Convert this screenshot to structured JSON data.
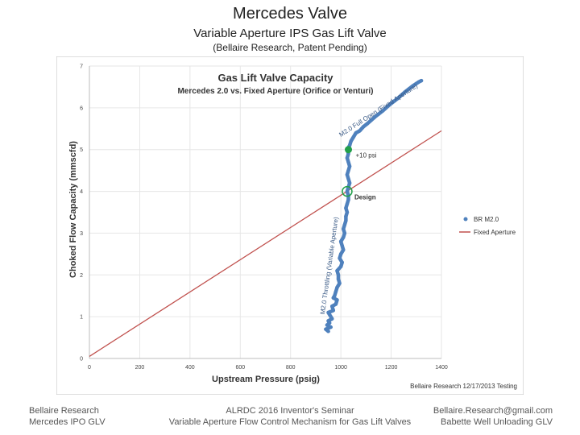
{
  "slide": {
    "title": "Mercedes Valve",
    "subtitle": "Variable Aperture IPS Gas Lift Valve",
    "subnote": "(Bellaire Research, Patent Pending)",
    "footer_left": [
      "Bellaire Research",
      "Mercedes IPO GLV"
    ],
    "footer_center": [
      "ALRDC 2016 Inventor's Seminar",
      "Variable Aperture Flow Control Mechanism for Gas Lift Valves"
    ],
    "footer_right": [
      "Bellaire.Research@gmail.com",
      "Babette Well Unloading GLV"
    ]
  },
  "chart_data": {
    "type": "line",
    "title": "Gas Lift Valve Capacity",
    "subtitle": "Mercedes 2.0 vs. Fixed Aperture (Orifice or Venturi)",
    "xlabel": "Upstream Pressure (psig)",
    "ylabel": "Choked Flow Capacity (mmscfd)",
    "xlim": [
      0,
      1400
    ],
    "ylim": [
      0,
      7
    ],
    "xticks": [
      0,
      200,
      400,
      600,
      800,
      1000,
      1200,
      1400
    ],
    "yticks": [
      0,
      1,
      2,
      3,
      4,
      5,
      6,
      7
    ],
    "grid": true,
    "legend_position": "right",
    "series": [
      {
        "name": "BR M2.0",
        "color": "#4f81bd",
        "points": [
          [
            950,
            0.65
          ],
          [
            940,
            0.7
          ],
          [
            960,
            0.75
          ],
          [
            945,
            0.8
          ],
          [
            955,
            0.85
          ],
          [
            950,
            0.9
          ],
          [
            965,
            0.95
          ],
          [
            960,
            1.0
          ],
          [
            950,
            1.1
          ],
          [
            970,
            1.15
          ],
          [
            965,
            1.25
          ],
          [
            980,
            1.3
          ],
          [
            985,
            1.4
          ],
          [
            970,
            1.45
          ],
          [
            975,
            1.5
          ],
          [
            980,
            1.6
          ],
          [
            985,
            1.7
          ],
          [
            995,
            1.8
          ],
          [
            990,
            1.9
          ],
          [
            990,
            2.0
          ],
          [
            985,
            2.1
          ],
          [
            1000,
            2.2
          ],
          [
            1005,
            2.3
          ],
          [
            995,
            2.4
          ],
          [
            1000,
            2.5
          ],
          [
            1010,
            2.6
          ],
          [
            1005,
            2.7
          ],
          [
            1000,
            2.8
          ],
          [
            1010,
            2.9
          ],
          [
            1015,
            3.0
          ],
          [
            1010,
            3.1
          ],
          [
            1015,
            3.2
          ],
          [
            1020,
            3.3
          ],
          [
            1020,
            3.4
          ],
          [
            1025,
            3.5
          ],
          [
            1020,
            3.6
          ],
          [
            1025,
            3.7
          ],
          [
            1030,
            3.8
          ],
          [
            1030,
            3.9
          ],
          [
            1025,
            4.0
          ],
          [
            1030,
            4.1
          ],
          [
            1035,
            4.2
          ],
          [
            1030,
            4.3
          ],
          [
            1025,
            4.4
          ],
          [
            1030,
            4.5
          ],
          [
            1035,
            4.6
          ],
          [
            1030,
            4.7
          ],
          [
            1025,
            4.8
          ],
          [
            1030,
            4.9
          ],
          [
            1025,
            5.0
          ],
          [
            1035,
            5.1
          ],
          [
            1040,
            5.2
          ],
          [
            1050,
            5.3
          ],
          [
            1060,
            5.4
          ],
          [
            1075,
            5.45
          ],
          [
            1090,
            5.55
          ],
          [
            1105,
            5.62
          ],
          [
            1120,
            5.7
          ],
          [
            1135,
            5.78
          ],
          [
            1150,
            5.85
          ],
          [
            1165,
            5.92
          ],
          [
            1180,
            6.0
          ],
          [
            1195,
            6.08
          ],
          [
            1210,
            6.15
          ],
          [
            1225,
            6.22
          ],
          [
            1240,
            6.3
          ],
          [
            1255,
            6.38
          ],
          [
            1270,
            6.45
          ],
          [
            1285,
            6.52
          ],
          [
            1300,
            6.58
          ],
          [
            1310,
            6.62
          ],
          [
            1320,
            6.65
          ]
        ]
      },
      {
        "name": "Fixed Aperture",
        "color": "#c0504d",
        "points": [
          [
            0,
            0.05
          ],
          [
            1400,
            5.45
          ]
        ]
      }
    ],
    "markers": [
      {
        "label": "+10 psi",
        "x": 1030,
        "y": 5.0,
        "style": "filled",
        "color": "#22a04a"
      },
      {
        "label": "Design",
        "x": 1025,
        "y": 4.0,
        "style": "hollow",
        "color": "#22a04a"
      }
    ],
    "annotations": [
      {
        "text": "M2.0 Full Open (Fixed Aperture)",
        "x": 1000,
        "y": 5.3,
        "rotation": -33
      },
      {
        "text": "M2.0 Throttling (Variable Aperture)",
        "x": 935,
        "y": 1.05,
        "rotation": -82
      }
    ],
    "credit": "Bellaire Research 12/17/2013 Testing"
  }
}
